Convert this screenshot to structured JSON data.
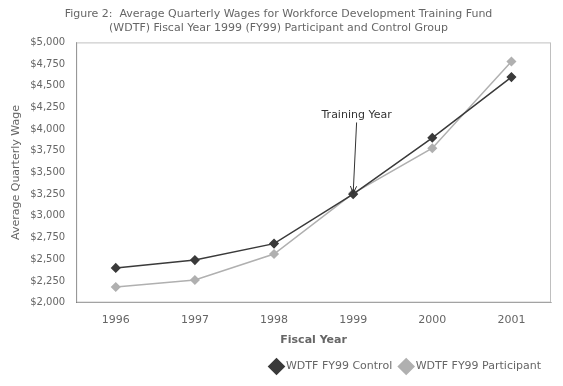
{
  "chart_data": {
    "type": "line",
    "title": [
      "Figure 2:  Average Quarterly Wages for Workforce Development Training Fund",
      "(WDTF) Fiscal Year 1999 (FY99) Participant and Control Group"
    ],
    "x_label": "Fiscal Year",
    "y_label": "Average Quarterly Wage",
    "x": [
      1996,
      1997,
      1998,
      1999,
      2000,
      2001
    ],
    "series": [
      {
        "name": "WDTF FY99 Control",
        "color": "#3a3a3a",
        "marker": "diamond",
        "line_style": "solid",
        "values": [
          2400,
          2490,
          2680,
          3250,
          3900,
          4600
        ]
      },
      {
        "name": "WDTF FY99 Participant",
        "color": "#b0b0b0",
        "marker": "diamond",
        "line_style": "solid",
        "values": [
          2180,
          2260,
          2560,
          3260,
          3780,
          4780
        ]
      }
    ],
    "xlim": [
      1995.5,
      2001.5
    ],
    "xticks": [
      1996,
      1997,
      1998,
      1999,
      2000,
      2001
    ],
    "ylim": [
      2000,
      5000
    ],
    "yticks": [
      {
        "value": 2000,
        "label": "$2,000"
      },
      {
        "value": 2250,
        "label": "$2,250"
      },
      {
        "value": 2500,
        "label": "$2,500"
      },
      {
        "value": 2750,
        "label": "$2,750"
      },
      {
        "value": 3000,
        "label": "$3,000"
      },
      {
        "value": 3250,
        "label": "$3,250"
      },
      {
        "value": 3500,
        "label": "$3,500"
      },
      {
        "value": 3750,
        "label": "$3,750"
      },
      {
        "value": 4000,
        "label": "$4,000"
      },
      {
        "value": 4250,
        "label": "$4,250"
      },
      {
        "value": 4500,
        "label": "$4,500"
      },
      {
        "value": 4750,
        "label": "$4,750"
      },
      {
        "value": 5000,
        "label": "$5,000"
      }
    ],
    "annotations": [
      {
        "text": "Training Year",
        "x": 1999.0,
        "y": 3258,
        "text_x": 1998.6,
        "text_y": 4100
      }
    ],
    "legend": "lower right",
    "grid": false
  }
}
